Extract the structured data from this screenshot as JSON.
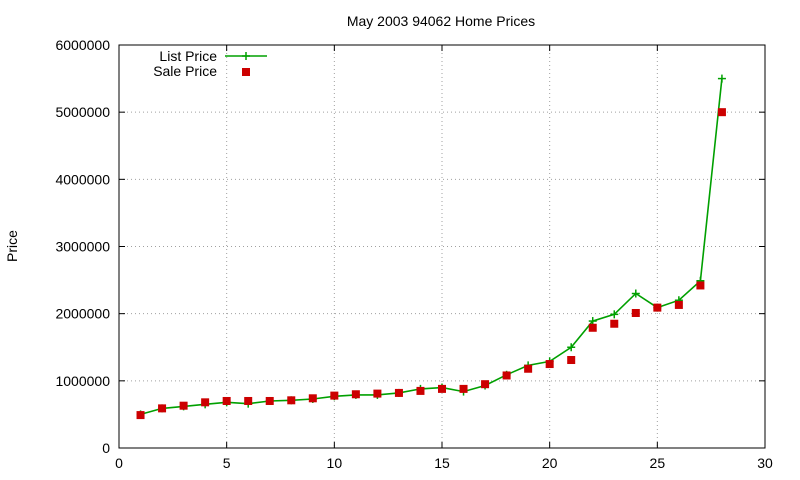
{
  "chart_data": {
    "type": "line",
    "title": "May 2003 94062 Home Prices",
    "xlabel": "",
    "ylabel": "Price",
    "xlim": [
      0,
      30
    ],
    "ylim": [
      0,
      6000000
    ],
    "xticks": [
      0,
      5,
      10,
      15,
      20,
      25,
      30
    ],
    "yticks": [
      0,
      1000000,
      2000000,
      3000000,
      4000000,
      5000000,
      6000000
    ],
    "grid": true,
    "legend_position": "top-left",
    "series": [
      {
        "name": "List Price",
        "style": "linespoints",
        "marker": "plus",
        "color": "#00a000",
        "x": [
          1,
          2,
          3,
          4,
          5,
          6,
          7,
          8,
          9,
          10,
          11,
          12,
          13,
          14,
          15,
          16,
          17,
          18,
          19,
          20,
          21,
          22,
          23,
          24,
          25,
          26,
          27,
          28
        ],
        "y": [
          500000,
          590000,
          620000,
          650000,
          680000,
          660000,
          700000,
          710000,
          730000,
          770000,
          790000,
          790000,
          820000,
          880000,
          900000,
          840000,
          930000,
          1090000,
          1230000,
          1290000,
          1500000,
          1890000,
          1990000,
          2300000,
          2090000,
          2200000,
          2490000,
          5500000
        ]
      },
      {
        "name": "Sale Price",
        "style": "points",
        "marker": "square",
        "color": "#cc0000",
        "x": [
          1,
          2,
          3,
          4,
          5,
          6,
          7,
          8,
          9,
          10,
          11,
          12,
          13,
          14,
          15,
          16,
          17,
          18,
          19,
          20,
          21,
          22,
          23,
          24,
          25,
          26,
          27,
          28
        ],
        "y": [
          490000,
          590000,
          630000,
          680000,
          700000,
          700000,
          700000,
          710000,
          740000,
          780000,
          800000,
          810000,
          820000,
          850000,
          880000,
          880000,
          950000,
          1080000,
          1180000,
          1250000,
          1310000,
          1790000,
          1850000,
          2010000,
          2090000,
          2130000,
          2420000,
          5000000
        ]
      }
    ]
  }
}
